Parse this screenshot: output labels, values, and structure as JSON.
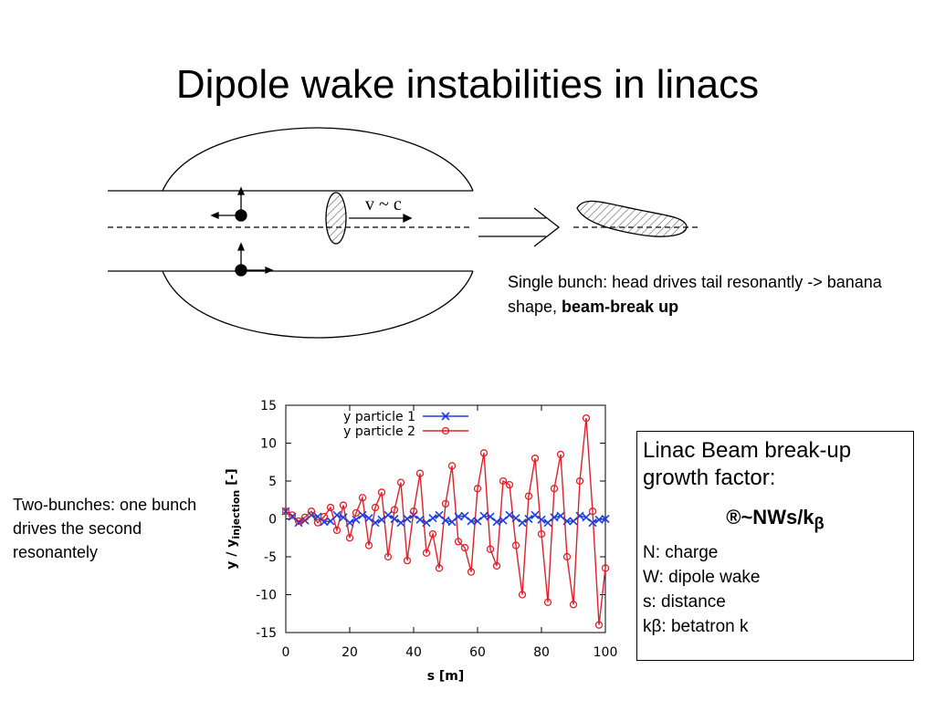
{
  "title": "Dipole wake instabilities in linacs",
  "diagram": {
    "label": "v ~ c"
  },
  "caption": {
    "text": "Single bunch: head drives tail resonantly -> banana shape, ",
    "bold": "beam-break up"
  },
  "left_note": "Two-bunches: one bunch drives the second resonantely",
  "box": {
    "heading": "Linac Beam break-up growth factor:",
    "formula": "®~NWs/k",
    "formula_sub": "β",
    "lines": [
      "N: charge",
      "W: dipole wake",
      "s: distance",
      "kβ: betatron k"
    ]
  },
  "chart_data": {
    "type": "line",
    "xlabel": "s [m]",
    "ylabel": {
      "main": "y / y",
      "sub": "injection",
      "tail": " [-]"
    },
    "xlim": [
      0,
      100
    ],
    "ylim": [
      -15,
      15
    ],
    "xticks": [
      0,
      20,
      40,
      60,
      80,
      100
    ],
    "yticks": [
      -15,
      -10,
      -5,
      0,
      5,
      10,
      15
    ],
    "legend": "top-left",
    "x": [
      0,
      2,
      4,
      6,
      8,
      10,
      12,
      14,
      16,
      18,
      20,
      22,
      24,
      26,
      28,
      30,
      32,
      34,
      36,
      38,
      40,
      42,
      44,
      46,
      48,
      50,
      52,
      54,
      56,
      58,
      60,
      62,
      64,
      66,
      68,
      70,
      72,
      74,
      76,
      78,
      80,
      82,
      84,
      86,
      88,
      90,
      92,
      94,
      96,
      98,
      100
    ],
    "series": [
      {
        "name": "y particle 1",
        "color": "#1f3fdc",
        "marker": "x",
        "values": [
          1,
          0.3,
          -0.5,
          -0.2,
          0.5,
          0.3,
          -0.4,
          -0.3,
          0.5,
          0.2,
          -0.5,
          -0.1,
          0.5,
          0.1,
          -0.5,
          -0.1,
          0.5,
          0,
          -0.5,
          0,
          0.5,
          -0.1,
          -0.5,
          0.1,
          0.5,
          -0.2,
          -0.4,
          0.3,
          0.4,
          -0.3,
          -0.3,
          0.4,
          0.3,
          -0.4,
          -0.2,
          0.5,
          0.1,
          -0.5,
          0,
          0.5,
          -0.1,
          -0.5,
          0.2,
          0.4,
          -0.3,
          -0.3,
          0.4,
          0.2,
          -0.5,
          -0.1,
          0
        ]
      },
      {
        "name": "y particle 2",
        "color": "#e0202a",
        "marker": "o",
        "values": [
          1,
          0.5,
          -0.3,
          0.2,
          1.0,
          -0.5,
          0.3,
          1.5,
          -1.5,
          1.8,
          -2.5,
          0.8,
          2.8,
          -3.5,
          1.5,
          3.5,
          -5,
          1.2,
          4.8,
          -5.5,
          1.0,
          6.0,
          -4.5,
          -2,
          -6.5,
          2,
          7.0,
          -3,
          -3.8,
          -7,
          4,
          8.7,
          -4,
          -6.2,
          5,
          4.5,
          -3.5,
          -10,
          3,
          8,
          -2,
          -11,
          4,
          8.5,
          -5,
          -11.3,
          5,
          13.3,
          1,
          -14,
          -6.5
        ]
      }
    ]
  }
}
